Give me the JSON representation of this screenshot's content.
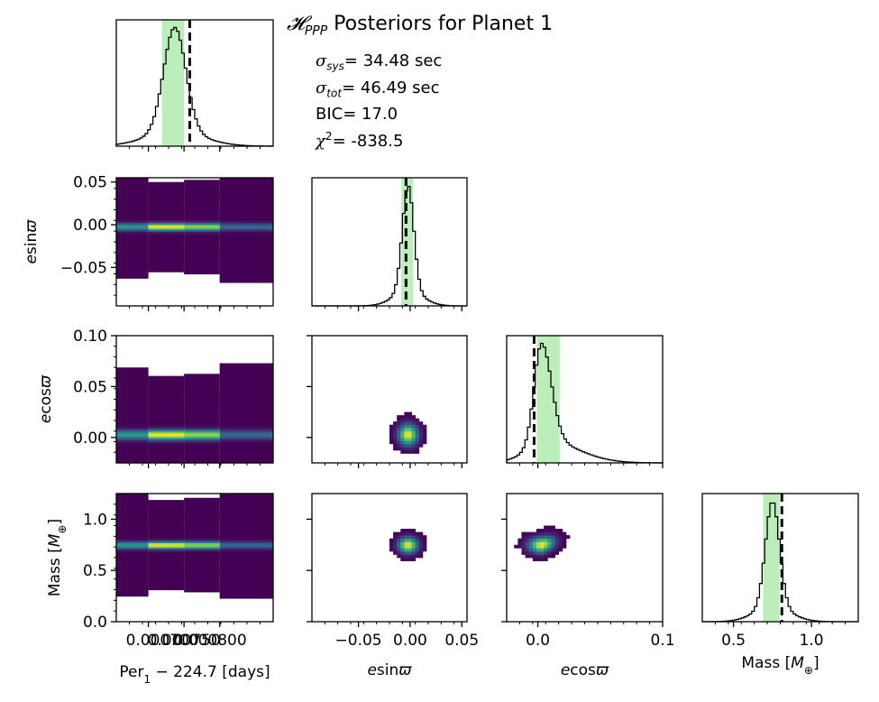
{
  "title": "𝓗PPP Posteriors for Planet 1",
  "title_prefix": "𝓗",
  "title_sub": "PPP",
  "title_rest": " Posteriors for Planet 1",
  "stats": {
    "sigma_sys": "= 34.48 sec",
    "sigma_tot": "= 46.49 sec",
    "bic": "BIC= 17.0",
    "chi2": "= -838.5",
    "sigma_sys_sub": "sys",
    "sigma_tot_sub": "tot"
  },
  "colors": {
    "shade": "#77dd77",
    "hist_line": "#000000",
    "truth_line": "#000000",
    "cmap": [
      "#440154",
      "#3b528b",
      "#21918c",
      "#5ec962",
      "#fde725"
    ]
  },
  "chart_data": {
    "type": "corner",
    "parameters": [
      "Per1 - 224.7",
      "esinϖ",
      "ecosϖ",
      "Mass"
    ],
    "axis_labels": {
      "x_per": "Per$_1-224.7$ [days]",
      "x_esin": "esinϖ",
      "x_ecos": "ecosϖ",
      "x_mass": "Mass [M⊕]",
      "y_esin": "esinϖ",
      "y_ecos": "ecosϖ",
      "y_mass": "Mass [M⊕]"
    },
    "ranges": {
      "per": [
        0.000655,
        0.000875
      ],
      "esin": [
        -0.095,
        0.055
      ],
      "ecos": [
        -0.025,
        0.1
      ],
      "mass": [
        0.0,
        1.25
      ]
    },
    "ticks": {
      "per": [
        "0.000700",
        "0.000750",
        "0.000800"
      ],
      "per_values": [
        0.0007,
        0.00075,
        0.0008
      ],
      "esin": [
        "−0.05",
        "0.00",
        "0.05"
      ],
      "esin_values": [
        -0.05,
        0.0,
        0.05
      ],
      "ecos": [
        "0.0",
        "0.1"
      ],
      "ecos_values": [
        0.0,
        0.1
      ],
      "ecos_y": [
        "0.00",
        "0.05",
        "0.10"
      ],
      "ecos_y_values": [
        0.0,
        0.05,
        0.1
      ],
      "mass_y": [
        "0.0",
        "0.5",
        "1.0"
      ],
      "mass_y_values": [
        0.0,
        0.5,
        1.0
      ],
      "mass_x": [
        "0.5",
        "1.0"
      ],
      "mass_x_values": [
        0.5,
        1.0
      ],
      "mass_hist_range": [
        0.3,
        1.3
      ]
    },
    "marginals": {
      "per": {
        "mean": 0.000737,
        "std": 1.55e-05,
        "ci": [
          0.000719,
          0.00075
        ],
        "truth": 0.000758
      },
      "esin": {
        "mean": -0.002,
        "std": 0.0055,
        "ci": [
          -0.0085,
          0.003
        ],
        "truth": -0.004
      },
      "ecos": {
        "mean": 0.003,
        "std": 0.006,
        "ci": [
          -0.001,
          0.0175
        ],
        "truth": -0.003
      },
      "mass": {
        "mean": 0.75,
        "std": 0.045,
        "ci": [
          0.69,
          0.795
        ],
        "truth": 0.81
      }
    }
  }
}
